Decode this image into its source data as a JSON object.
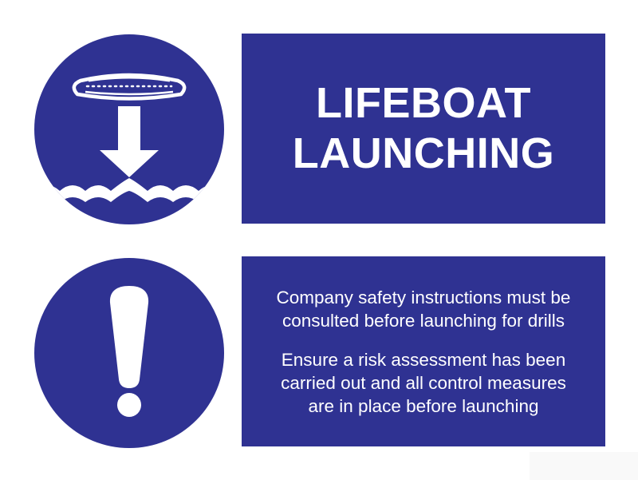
{
  "colors": {
    "sign_blue": "#2f3292",
    "symbol_white": "#ffffff",
    "background": "#ffffff"
  },
  "icons": {
    "top": "lifeboat-launch-icon",
    "bottom": "exclamation-icon"
  },
  "title": {
    "lines": [
      "LIFEBOAT",
      "LAUNCHING"
    ]
  },
  "info": {
    "paragraph_1": {
      "line_1": "Company safety instructions must be",
      "line_2": "consulted before launching for drills"
    },
    "paragraph_2": {
      "line_1": "Ensure a risk assessment has been",
      "line_2": "carried out and all control measures",
      "line_3": "are in place before launching"
    }
  }
}
